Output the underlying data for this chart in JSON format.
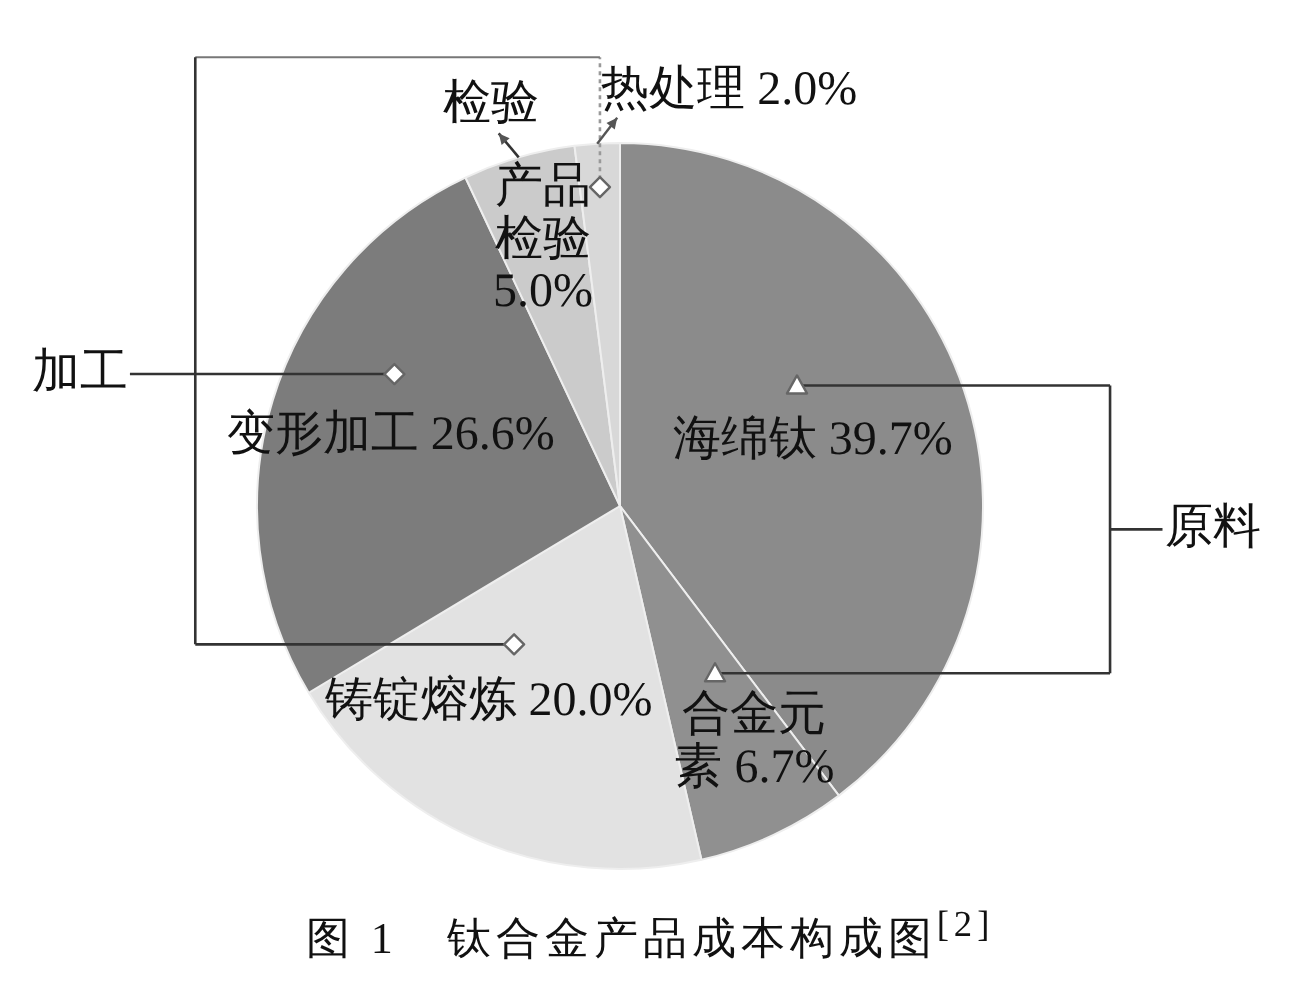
{
  "chart_data": {
    "type": "pie",
    "title": "图 1　钛合金产品成本构成图$^{[2]}$",
    "categories": [
      "海绵钛",
      "合金元素",
      "铸锭熔炼",
      "变形加工",
      "产品检验",
      "热处理"
    ],
    "values": [
      39.7,
      6.7,
      20.0,
      26.6,
      5.0,
      2.0
    ],
    "colors": [
      "#8b8b8b",
      "#909090",
      "#e2e2e2",
      "#7c7c7c",
      "#cbcbcb",
      "#d8d8d8"
    ],
    "value_labels": [
      "39.7%",
      "6.7%",
      "20.0%",
      "26.6%",
      "5.0%",
      "2.0%"
    ],
    "annotations": [
      "检验",
      "加工",
      "原料"
    ],
    "legend": false
  }
}
